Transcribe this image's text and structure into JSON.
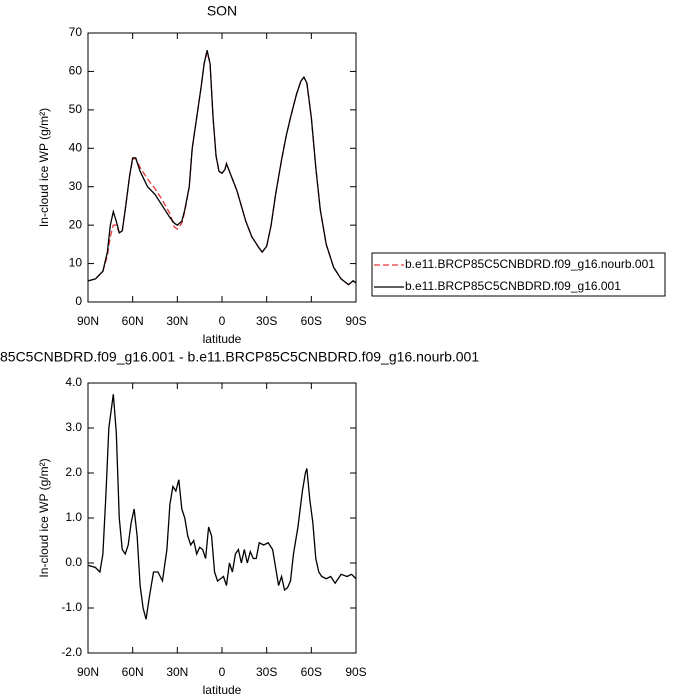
{
  "chart_data": [
    {
      "type": "line",
      "title": "SON",
      "x_label": "latitude",
      "y_label": "In-cloud ice WP (g/m²)",
      "xlim": [
        90,
        -90
      ],
      "ylim": [
        0,
        70
      ],
      "xticks": [
        {
          "value": 90,
          "label": "90N"
        },
        {
          "value": 60,
          "label": "60N"
        },
        {
          "value": 30,
          "label": "30N"
        },
        0,
        {
          "value": -30,
          "label": "30S"
        },
        {
          "value": -60,
          "label": "60S"
        },
        {
          "value": -90,
          "label": "90S"
        }
      ],
      "yticks": [
        0,
        10,
        20,
        30,
        40,
        50,
        60,
        70
      ],
      "legend": "right",
      "x": [
        90,
        85,
        80,
        77,
        75,
        73,
        71,
        69,
        67,
        65,
        62,
        60,
        58,
        55,
        50,
        45,
        40,
        35,
        32,
        30,
        27,
        25,
        22,
        20,
        17,
        14,
        12,
        10,
        8,
        6,
        4,
        2,
        0,
        -2,
        -3,
        -5,
        -8,
        -10,
        -13,
        -16,
        -20,
        -25,
        -27,
        -30,
        -33,
        -36,
        -40,
        -43,
        -46,
        -50,
        -53,
        -55,
        -57,
        -60,
        -63,
        -66,
        -70,
        -75,
        -80,
        -85,
        -88,
        -90
      ],
      "series": [
        {
          "name": "b.e11.BRCP85C5CNBDRD.f09_g16.nourb.001",
          "color": "#e8363a",
          "linestyle": "dashed",
          "values": [
            5.5,
            6,
            8,
            12,
            17,
            20,
            20,
            18,
            18.5,
            24,
            33,
            37,
            37.5,
            35,
            32,
            29.5,
            26.5,
            23,
            19.5,
            19,
            20.5,
            23.5,
            30,
            40,
            48,
            56,
            62,
            65,
            62,
            48,
            38,
            34,
            33.5,
            34.5,
            36,
            34,
            31,
            29,
            25,
            21,
            17,
            14,
            13,
            14.5,
            20,
            28,
            37,
            43,
            48,
            54,
            57.5,
            58.5,
            57,
            48,
            35,
            24,
            15,
            9,
            6,
            4.5,
            5.5,
            5
          ]
        },
        {
          "name": "b.e11.BRCP85C5CNBDRD.f09_g16.001",
          "color": "#000000",
          "linestyle": "solid",
          "values": [
            5.5,
            6,
            8,
            13,
            20,
            23.5,
            21,
            18,
            18.5,
            24,
            33,
            37.5,
            37.5,
            34,
            30,
            28,
            25,
            22,
            20.5,
            20,
            21,
            24,
            30,
            40,
            48,
            56,
            62,
            65.5,
            62,
            48,
            38,
            34,
            33.5,
            34.5,
            36,
            34,
            31,
            29,
            25,
            21,
            17,
            14,
            13,
            14.5,
            20,
            28,
            37,
            43,
            48,
            54,
            57.5,
            58.5,
            57,
            48,
            35,
            24,
            15,
            9,
            6,
            4.5,
            5.5,
            5
          ]
        }
      ]
    },
    {
      "type": "line",
      "title": "85C5CNBDRD.f09_g16.001 - b.e11.BRCP85C5CNBDRD.f09_g16.nourb.001",
      "x_label": "latitude",
      "y_label": "In-cloud ice WP (g/m²)",
      "xlim": [
        90,
        -90
      ],
      "ylim": [
        -2,
        4
      ],
      "xticks": [
        {
          "value": 90,
          "label": "90N"
        },
        {
          "value": 60,
          "label": "60N"
        },
        {
          "value": 30,
          "label": "30N"
        },
        0,
        {
          "value": -30,
          "label": "30S"
        },
        {
          "value": -60,
          "label": "60S"
        },
        {
          "value": -90,
          "label": "90S"
        }
      ],
      "yticks": [
        {
          "value": -2,
          "label": "-2.0"
        },
        {
          "value": -1,
          "label": "-1.0"
        },
        {
          "value": 0,
          "label": "0.0"
        },
        {
          "value": 1,
          "label": "1.0"
        },
        {
          "value": 2,
          "label": "2.0"
        },
        {
          "value": 3,
          "label": "3.0"
        },
        {
          "value": 4,
          "label": "4.0"
        }
      ],
      "x": [
        90,
        85,
        82,
        80,
        78,
        76,
        74,
        73,
        71,
        69,
        67,
        65,
        63,
        61,
        59,
        57,
        55,
        53,
        51,
        49,
        46,
        43,
        40,
        37,
        35,
        33,
        31,
        29,
        27,
        25,
        23,
        21,
        19,
        17,
        15,
        13,
        11,
        9,
        7,
        5,
        3,
        1,
        -1,
        -3,
        -5,
        -7,
        -9,
        -11,
        -13,
        -15,
        -17,
        -19,
        -21,
        -23,
        -25,
        -28,
        -31,
        -34,
        -36,
        -38,
        -40,
        -42,
        -44,
        -46,
        -48,
        -51,
        -54,
        -56,
        -57,
        -59,
        -61,
        -63,
        -65,
        -67,
        -70,
        -73,
        -76,
        -80,
        -84,
        -87,
        -90
      ],
      "series": [
        {
          "color": "#000000",
          "linestyle": "solid",
          "values": [
            -0.05,
            -0.1,
            -0.2,
            0.2,
            1.5,
            3.0,
            3.5,
            3.75,
            2.9,
            1.0,
            0.3,
            0.2,
            0.4,
            0.9,
            1.2,
            0.6,
            -0.5,
            -1.0,
            -1.25,
            -0.8,
            -0.2,
            -0.2,
            -0.4,
            0.3,
            1.3,
            1.7,
            1.6,
            1.85,
            1.2,
            1.0,
            0.6,
            0.4,
            0.5,
            0.2,
            0.35,
            0.3,
            0.1,
            0.8,
            0.6,
            -0.2,
            -0.4,
            -0.35,
            -0.3,
            -0.5,
            0.0,
            -0.2,
            0.2,
            0.3,
            0.0,
            0.3,
            0.0,
            0.25,
            0.1,
            0.1,
            0.45,
            0.4,
            0.45,
            0.3,
            -0.1,
            -0.5,
            -0.3,
            -0.6,
            -0.55,
            -0.4,
            0.2,
            0.8,
            1.6,
            2.0,
            2.1,
            1.4,
            0.9,
            0.1,
            -0.2,
            -0.3,
            -0.35,
            -0.3,
            -0.45,
            -0.25,
            -0.3,
            -0.25,
            -0.35
          ]
        }
      ]
    }
  ]
}
